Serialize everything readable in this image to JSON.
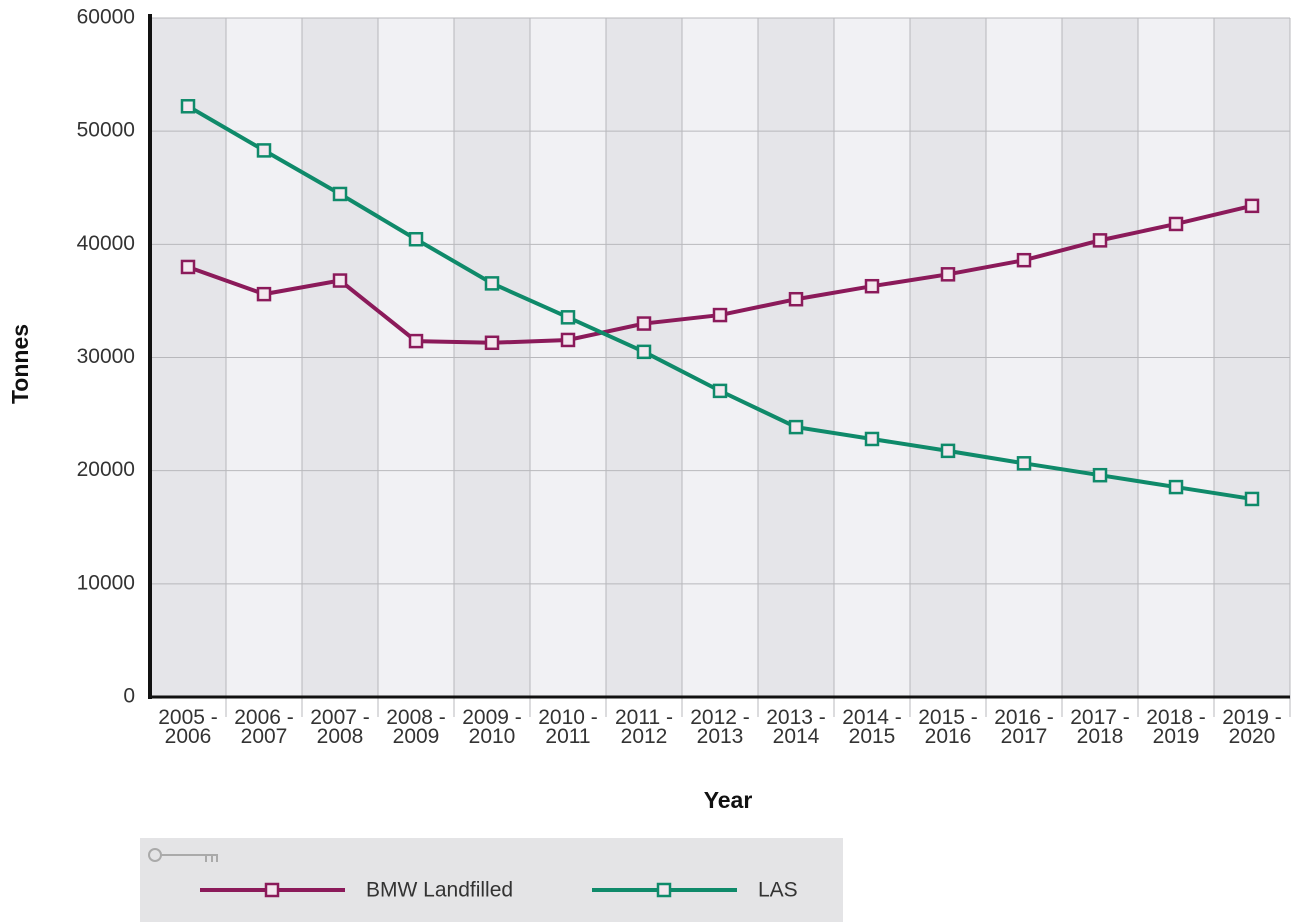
{
  "chart_data": {
    "type": "line",
    "x_label": "Year",
    "y_label": "Tonnes",
    "categories": [
      "2005 - 2006",
      "2006 - 2007",
      "2007 - 2008",
      "2008 - 2009",
      "2009 - 2010",
      "2010 - 2011",
      "2011 - 2012",
      "2012 - 2013",
      "2013 - 2014",
      "2014 - 2015",
      "2015 - 2016",
      "2016 - 2017",
      "2017 - 2018",
      "2018 - 2019",
      "2019 - 2020"
    ],
    "series": [
      {
        "name": "BMW Landfilled",
        "color": "#8b1a5a",
        "values": [
          38000,
          35600,
          36800,
          31450,
          31300,
          31550,
          33000,
          33750,
          35150,
          36300,
          37350,
          38600,
          40350,
          41800,
          43400
        ]
      },
      {
        "name": "LAS",
        "color": "#0f8a6a",
        "values": [
          52200,
          48300,
          44450,
          40450,
          36550,
          33550,
          30500,
          27050,
          23850,
          22800,
          21750,
          20650,
          19600,
          18550,
          17500
        ]
      }
    ],
    "ylim": [
      0,
      60000
    ],
    "yticks": [
      0,
      10000,
      20000,
      30000,
      40000,
      50000,
      60000
    ],
    "grid": true
  }
}
